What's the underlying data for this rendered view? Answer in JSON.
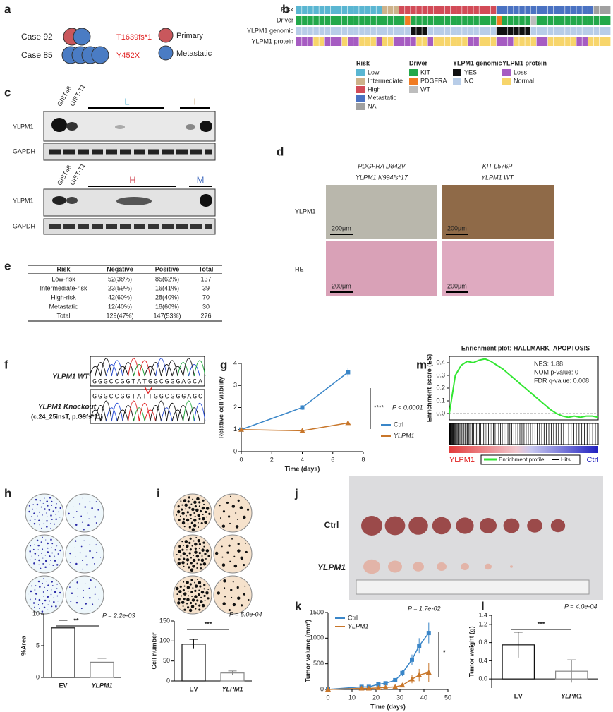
{
  "panel_labels": [
    "a",
    "b",
    "c",
    "d",
    "e",
    "f",
    "g",
    "h",
    "i",
    "j",
    "k",
    "l",
    "m"
  ],
  "panel_a": {
    "cases": [
      {
        "name": "Case 92",
        "mutation": "T1639fs*1"
      },
      {
        "name": "Case 85",
        "mutation": "Y452X"
      }
    ],
    "legend": [
      {
        "name": "Primary",
        "color": "#c9575c"
      },
      {
        "name": "Metastatic",
        "color": "#4a7cc4"
      }
    ]
  },
  "panel_b": {
    "rows": [
      {
        "name": "Risk",
        "runs": [
          {
            "name": "Low",
            "n": 15
          },
          {
            "name": "Intermediate",
            "n": 3
          },
          {
            "name": "High",
            "n": 17
          },
          {
            "name": "Metastatic",
            "n": 17
          },
          {
            "name": "NA",
            "n": 3
          }
        ]
      },
      {
        "name": "Driver",
        "runs": [
          {
            "name": "KIT",
            "n": 19
          },
          {
            "name": "PDGFRA",
            "n": 1
          },
          {
            "name": "KIT",
            "n": 15
          },
          {
            "name": "PDGFRA",
            "n": 1
          },
          {
            "name": "KIT",
            "n": 5
          },
          {
            "name": "WT",
            "n": 1
          },
          {
            "name": "KIT",
            "n": 13
          }
        ]
      },
      {
        "name": "YLPM1 genomic",
        "runs": [
          {
            "name": "NO",
            "n": 20
          },
          {
            "name": "YES",
            "n": 3
          },
          {
            "name": "NO",
            "n": 12
          },
          {
            "name": "YES",
            "n": 6
          },
          {
            "name": "NO",
            "n": 14
          }
        ]
      },
      {
        "name": "YLPM1 protein",
        "runs": [
          {
            "name": "Loss",
            "n": 3
          },
          {
            "name": "Normal",
            "n": 2
          },
          {
            "name": "Loss",
            "n": 3
          },
          {
            "name": "Normal",
            "n": 1
          },
          {
            "name": "Loss",
            "n": 2
          },
          {
            "name": "Normal",
            "n": 3
          },
          {
            "name": "Loss",
            "n": 1
          },
          {
            "name": "Normal",
            "n": 2
          },
          {
            "name": "Loss",
            "n": 4
          },
          {
            "name": "Normal",
            "n": 2
          },
          {
            "name": "Loss",
            "n": 1
          },
          {
            "name": "Normal",
            "n": 6
          },
          {
            "name": "Loss",
            "n": 2
          },
          {
            "name": "Normal",
            "n": 3
          },
          {
            "name": "Loss",
            "n": 3
          },
          {
            "name": "Normal",
            "n": 4
          },
          {
            "name": "Loss",
            "n": 2
          },
          {
            "name": "Normal",
            "n": 5
          },
          {
            "name": "Loss",
            "n": 2
          },
          {
            "name": "Normal",
            "n": 4
          }
        ]
      }
    ],
    "legend": [
      {
        "title": "Risk",
        "items": [
          {
            "name": "Low",
            "color": "#5ab6d2"
          },
          {
            "name": "Intermediate",
            "color": "#cdb28a"
          },
          {
            "name": "High",
            "color": "#d24b57"
          },
          {
            "name": "Metastatic",
            "color": "#4a72c2"
          },
          {
            "name": "NA",
            "color": "#a0a0a0"
          }
        ]
      },
      {
        "title": "Driver",
        "items": [
          {
            "name": "KIT",
            "color": "#22a84a"
          },
          {
            "name": "PDGFRA",
            "color": "#f07b22"
          },
          {
            "name": "WT",
            "color": "#bdbdbd"
          }
        ]
      },
      {
        "title": "YLPM1 genomic",
        "items": [
          {
            "name": "YES",
            "color": "#111111"
          },
          {
            "name": "NO",
            "color": "#b8cde8"
          }
        ]
      },
      {
        "title": "YLPM1 protein",
        "items": [
          {
            "name": "Loss",
            "color": "#a65cc2"
          },
          {
            "name": "Normal",
            "color": "#f7d56b"
          }
        ]
      }
    ]
  },
  "panel_c": {
    "cell_lines": [
      "GIST48",
      "GIST-T1"
    ],
    "proteins": [
      "YLPM1",
      "GAPDH"
    ],
    "top_groups": [
      "L",
      "I"
    ],
    "bottom_groups": [
      "H",
      "M"
    ]
  },
  "panel_d": {
    "columns": [
      {
        "gene1": "PDGFRA D842V",
        "gene2": "YLPM1 N994fs*17"
      },
      {
        "gene1": "KIT L576P",
        "gene2": "YLPM1 WT"
      }
    ],
    "rows": [
      "YLPM1",
      "HE"
    ],
    "scale_bar": "200μm"
  },
  "panel_e": {
    "header": [
      "Risk",
      "Negative",
      "Positive",
      "Total"
    ],
    "rows": [
      [
        "Low-risk",
        "52(38%)",
        "85(62%)",
        "137"
      ],
      [
        "Intermediate-risk",
        "23(59%)",
        "16(41%)",
        "39"
      ],
      [
        "High-risk",
        "42(60%)",
        "28(40%)",
        "70"
      ],
      [
        "Metastatic",
        "12(40%)",
        "18(60%)",
        "30"
      ],
      [
        "Total",
        "129(47%)",
        "147(53%)",
        "276"
      ]
    ]
  },
  "panel_f": {
    "wt_label": "YLPM1 WT",
    "ko_label": "YLPM1 Knockout",
    "ko_detail": "(c.24_25insT, p.G9fs*11)",
    "wt_seq": "GGGCCGGTATGGCGGGAGCA",
    "ko_seq": "GGGCCGGTATTGGCGGGAGC"
  },
  "panel_j": {
    "rows": [
      "Ctrl",
      "YLPM1"
    ]
  },
  "chart_data": [
    {
      "type": "line",
      "xlabel": "Time (days)",
      "ylabel": "Relative cell viability",
      "x": [
        0,
        4,
        7
      ],
      "xlim": [
        0,
        8
      ],
      "xticks": [
        0,
        2,
        4,
        6,
        8
      ],
      "ylim": [
        0,
        4
      ],
      "yticks": [
        0,
        1,
        2,
        3,
        4
      ],
      "series": [
        {
          "name": "Ctrl",
          "color": "#3a86c8",
          "values": [
            1,
            2,
            3.6
          ],
          "errors": [
            0,
            0.1,
            0.2
          ]
        },
        {
          "name": "YLPM1",
          "color": "#c8762a",
          "values": [
            1,
            0.95,
            1.3
          ],
          "errors": [
            0,
            0.04,
            0.05
          ]
        }
      ],
      "annotations": [
        "****",
        "P < 0.0001"
      ]
    },
    {
      "type": "bar",
      "ylabel": "%Area",
      "categories": [
        "EV",
        "YLPM1"
      ],
      "values": [
        7.8,
        2.4
      ],
      "errors": [
        1.2,
        0.6
      ],
      "colors": [
        "#111111",
        "#888888"
      ],
      "ylim": [
        0,
        10
      ],
      "yticks": [
        0,
        5,
        10
      ],
      "annotations": [
        "**",
        "P = 2.2e-03"
      ]
    },
    {
      "type": "bar",
      "ylabel": "Cell number",
      "categories": [
        "EV",
        "YLPM1"
      ],
      "values": [
        92,
        20
      ],
      "errors": [
        12,
        5
      ],
      "colors": [
        "#111111",
        "#888888"
      ],
      "ylim": [
        0,
        150
      ],
      "yticks": [
        0,
        50,
        100,
        150
      ],
      "annotations": [
        "***",
        "P = 5.0e-04"
      ]
    },
    {
      "type": "line",
      "xlabel": "Time (days)",
      "ylabel": "Tumor volume (mm³)",
      "x": [
        0,
        14,
        17,
        21,
        24,
        28,
        31,
        35,
        38,
        42
      ],
      "xlim": [
        0,
        50
      ],
      "xticks": [
        0,
        10,
        20,
        30,
        40,
        50
      ],
      "ylim": [
        0,
        1500
      ],
      "yticks": [
        0,
        500,
        1000,
        1500
      ],
      "series": [
        {
          "name": "Ctrl",
          "color": "#3a86c8",
          "values": [
            0,
            50,
            50,
            100,
            120,
            180,
            320,
            580,
            850,
            1100
          ],
          "errors": [
            0,
            10,
            10,
            20,
            20,
            30,
            60,
            100,
            150,
            200
          ]
        },
        {
          "name": "YLPM1",
          "color": "#c8762a",
          "values": [
            0,
            20,
            20,
            30,
            40,
            50,
            80,
            200,
            280,
            330
          ],
          "errors": [
            0,
            5,
            5,
            10,
            10,
            15,
            30,
            80,
            120,
            180
          ]
        }
      ],
      "annotations": [
        "P = 1.7e-02",
        "*"
      ]
    },
    {
      "type": "bar",
      "ylabel": "Tumor weight (g)",
      "categories": [
        "EV",
        "YLPM1"
      ],
      "values": [
        0.75,
        0.17
      ],
      "errors": [
        0.28,
        0.25
      ],
      "colors": [
        "#111111",
        "#888888"
      ],
      "ylim": [
        -0.2,
        1.4
      ],
      "yticks": [
        {
          "value": 0,
          "label": "0.0"
        },
        {
          "value": 0.4,
          "label": "0.4"
        },
        {
          "value": 0.8,
          "label": "0.8"
        },
        {
          "value": 1.2,
          "label": "1.2"
        },
        {
          "value": 1.4,
          "label": "1.4"
        }
      ],
      "annotations": [
        "***",
        "P = 4.0e-04"
      ]
    },
    {
      "type": "enrichment",
      "title": "Enrichment plot: HALLMARK_APOPTOSIS",
      "ylabel": "Enrichment score (ES)",
      "color": "#33e633",
      "ylim": [
        -0.05,
        0.45
      ],
      "yticks": [
        {
          "value": 0,
          "label": "0.0"
        },
        {
          "value": 0.1,
          "label": "0.1"
        },
        {
          "value": 0.2,
          "label": "0.2"
        },
        {
          "value": 0.3,
          "label": "0.3"
        },
        {
          "value": 0.4,
          "label": "0.4"
        }
      ],
      "values": [
        0,
        0.3,
        0.38,
        0.41,
        0.4,
        0.42,
        0.43,
        0.41,
        0.38,
        0.35,
        0.31,
        0.27,
        0.23,
        0.19,
        0.15,
        0.11,
        0.07,
        0.03,
        0,
        -0.02,
        -0.03,
        -0.02,
        -0.03,
        -0.02,
        -0.02,
        -0.03
      ],
      "annotations": [
        "NES: 1.88",
        "NOM p-value: 0",
        "FDR q-value: 0.008"
      ],
      "legend": [
        "Enrichment profile",
        "Hits"
      ],
      "phenotypes": [
        "YLPM1",
        "Ctrl"
      ]
    }
  ]
}
